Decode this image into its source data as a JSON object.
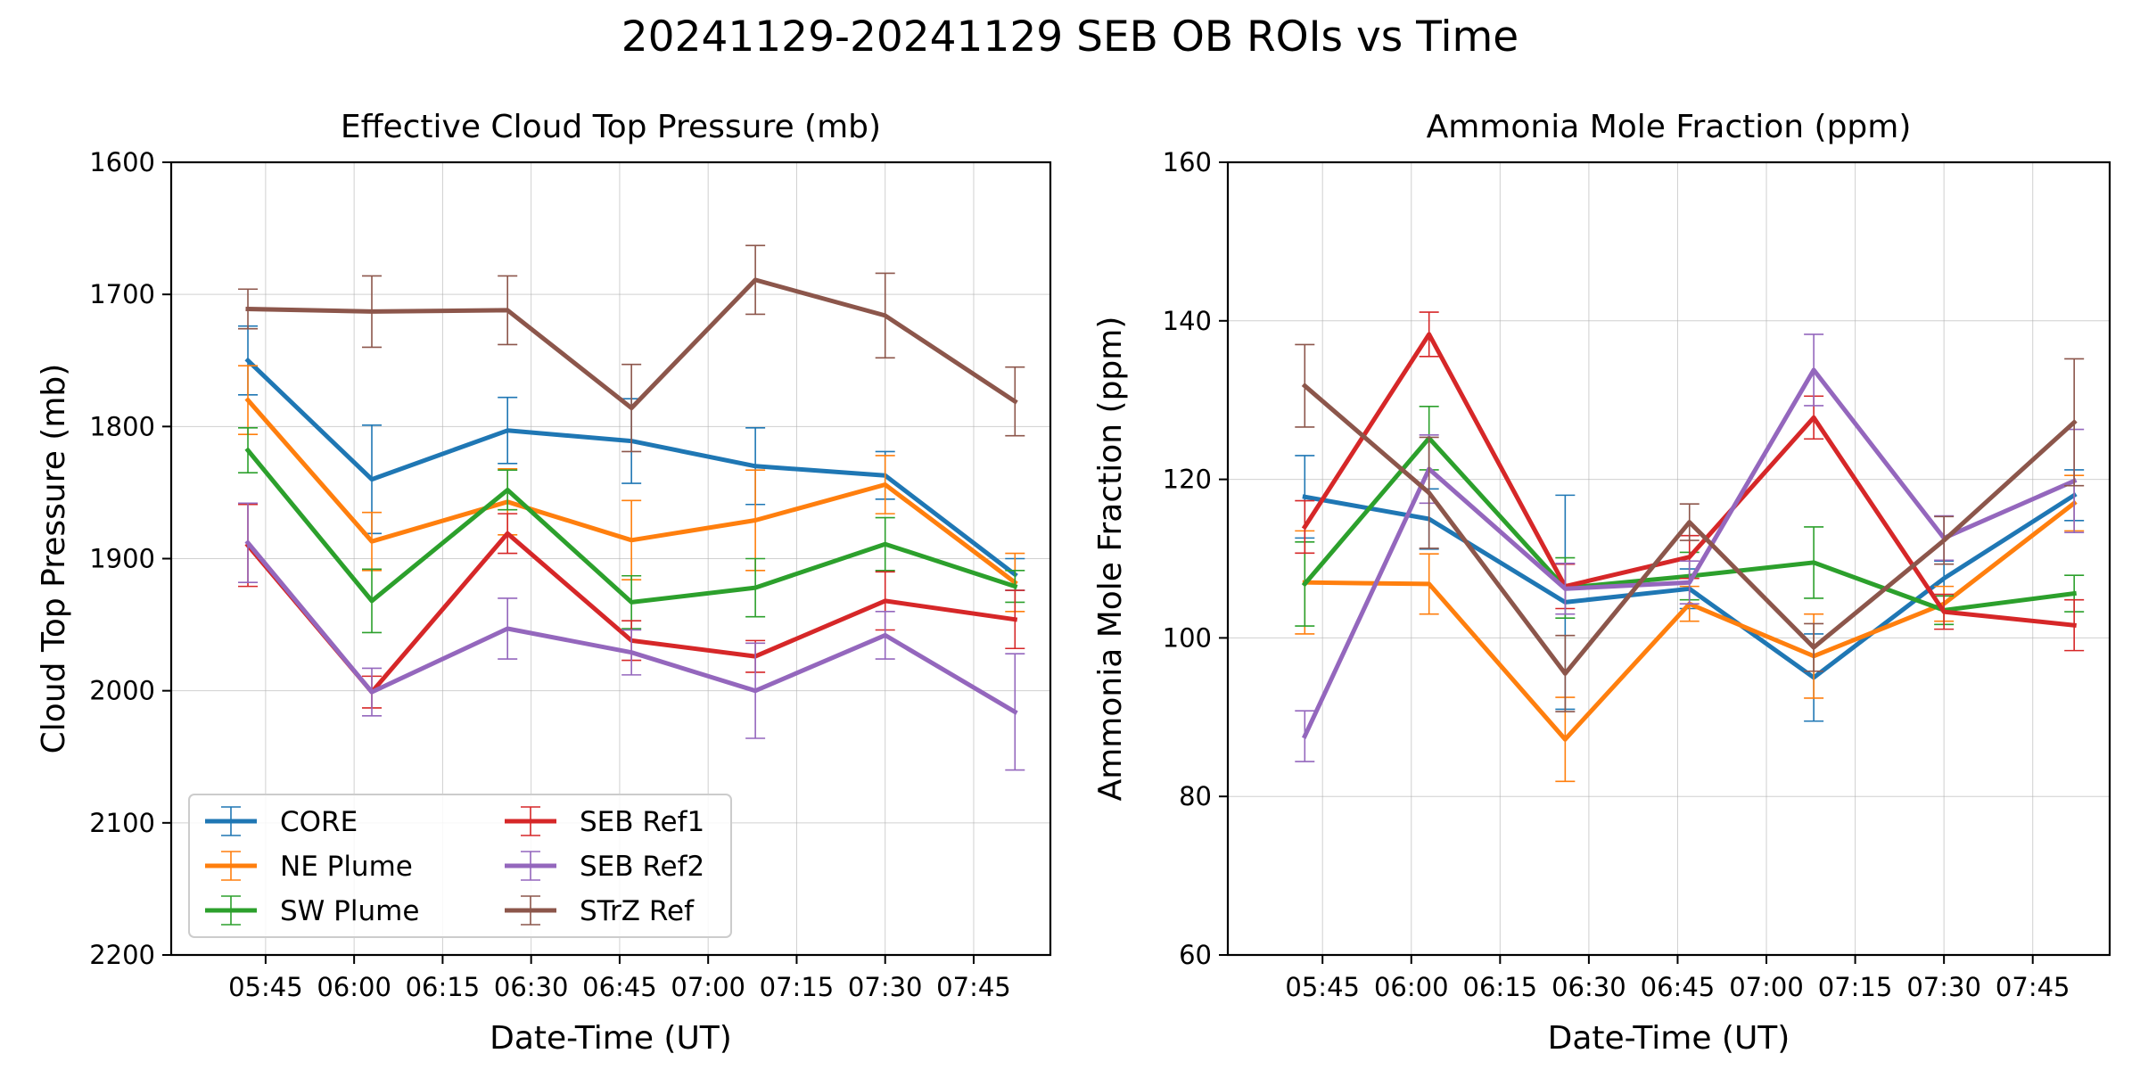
{
  "figure": {
    "title": "20241129-20241129 SEB OB ROIs vs Time"
  },
  "chart_data": [
    {
      "type": "line",
      "title": "Effective Cloud Top Pressure (mb)",
      "xlabel": "Date-Time (UT)",
      "ylabel": "Cloud Top Pressure (mb)",
      "ylim": [
        2200,
        1600
      ],
      "y_inverted": true,
      "xlim": [
        "05:29",
        "07:58"
      ],
      "x_ticks": [
        "05:45",
        "06:00",
        "06:15",
        "06:30",
        "06:45",
        "07:00",
        "07:15",
        "07:30",
        "07:45"
      ],
      "y_ticks": [
        1600,
        1700,
        1800,
        1900,
        2000,
        2100,
        2200
      ],
      "grid": true,
      "legend": "lower-left",
      "legend_columns": 2,
      "x": [
        "05:42",
        "06:03",
        "06:26",
        "06:47",
        "07:08",
        "07:30",
        "07:52"
      ],
      "series": [
        {
          "name": "CORE",
          "color": "#1f77b4",
          "values": [
            1750,
            1840,
            1803,
            1811,
            1830,
            1837,
            1912
          ],
          "err": [
            26,
            41,
            25,
            32,
            29,
            18,
            12
          ]
        },
        {
          "name": "NE Plume",
          "color": "#ff7f0e",
          "values": [
            1780,
            1887,
            1857,
            1886,
            1871,
            1844,
            1918
          ],
          "err": [
            26,
            22,
            25,
            30,
            38,
            22,
            22
          ]
        },
        {
          "name": "SW Plume",
          "color": "#2ca02c",
          "values": [
            1818,
            1932,
            1848,
            1933,
            1922,
            1889,
            1921
          ],
          "err": [
            17,
            24,
            15,
            20,
            22,
            20,
            12
          ]
        },
        {
          "name": "SEB Ref1",
          "color": "#d62728",
          "values": [
            1890,
            2001,
            1881,
            1962,
            1974,
            1932,
            1946
          ],
          "err": [
            31,
            12,
            15,
            15,
            12,
            22,
            22
          ]
        },
        {
          "name": "SEB Ref2",
          "color": "#9467bd",
          "values": [
            1888,
            2001,
            1953,
            1971,
            2000,
            1958,
            2016
          ],
          "err": [
            30,
            18,
            23,
            17,
            36,
            18,
            44
          ]
        },
        {
          "name": "STrZ Ref",
          "color": "#8c564b",
          "values": [
            1711,
            1713,
            1712,
            1786,
            1689,
            1716,
            1781
          ],
          "err": [
            15,
            27,
            26,
            33,
            26,
            32,
            26
          ]
        }
      ]
    },
    {
      "type": "line",
      "title": "Ammonia Mole Fraction (ppm)",
      "xlabel": "Date-Time (UT)",
      "ylabel": "Ammonia Mole Fraction (ppm)",
      "ylim": [
        60,
        160
      ],
      "xlim": [
        "05:29",
        "07:58"
      ],
      "x_ticks": [
        "05:45",
        "06:00",
        "06:15",
        "06:30",
        "06:45",
        "07:00",
        "07:15",
        "07:30",
        "07:45"
      ],
      "y_ticks": [
        60,
        80,
        100,
        120,
        140,
        160
      ],
      "grid": true,
      "x": [
        "05:42",
        "06:03",
        "06:26",
        "06:47",
        "07:08",
        "07:30",
        "07:52"
      ],
      "series": [
        {
          "name": "CORE",
          "color": "#1f77b4",
          "values": [
            117.8,
            115.0,
            104.5,
            106.2,
            95.0,
            107.5,
            118.0
          ],
          "err": [
            5.2,
            3.8,
            13.5,
            2.5,
            5.5,
            2.2,
            3.2
          ]
        },
        {
          "name": "NE Plume",
          "color": "#ff7f0e",
          "values": [
            107.0,
            106.8,
            87.2,
            104.3,
            97.7,
            104.3,
            117.0
          ],
          "err": [
            6.5,
            3.8,
            5.3,
            2.2,
            5.3,
            2.2,
            3.5
          ]
        },
        {
          "name": "SW Plume",
          "color": "#2ca02c",
          "values": [
            106.8,
            125.2,
            106.3,
            107.8,
            109.5,
            103.5,
            105.6
          ],
          "err": [
            5.3,
            4.0,
            3.8,
            3.0,
            4.5,
            1.8,
            2.3
          ]
        },
        {
          "name": "SEB Ref1",
          "color": "#d62728",
          "values": [
            114.0,
            138.3,
            106.5,
            110.2,
            127.8,
            103.3,
            101.6
          ],
          "err": [
            3.3,
            2.8,
            2.8,
            2.7,
            2.7,
            2.2,
            3.2
          ]
        },
        {
          "name": "SEB Ref2",
          "color": "#9467bd",
          "values": [
            87.6,
            121.3,
            106.2,
            107.0,
            133.8,
            112.6,
            119.8
          ],
          "err": [
            3.2,
            4.3,
            3.2,
            2.7,
            4.5,
            2.8,
            6.5
          ]
        },
        {
          "name": "STrZ Ref",
          "color": "#8c564b",
          "values": [
            131.8,
            118.3,
            95.5,
            114.6,
            98.8,
            112.3,
            127.2
          ],
          "err": [
            5.2,
            7.0,
            4.8,
            2.3,
            3.0,
            3.0,
            8.0
          ]
        }
      ]
    }
  ]
}
